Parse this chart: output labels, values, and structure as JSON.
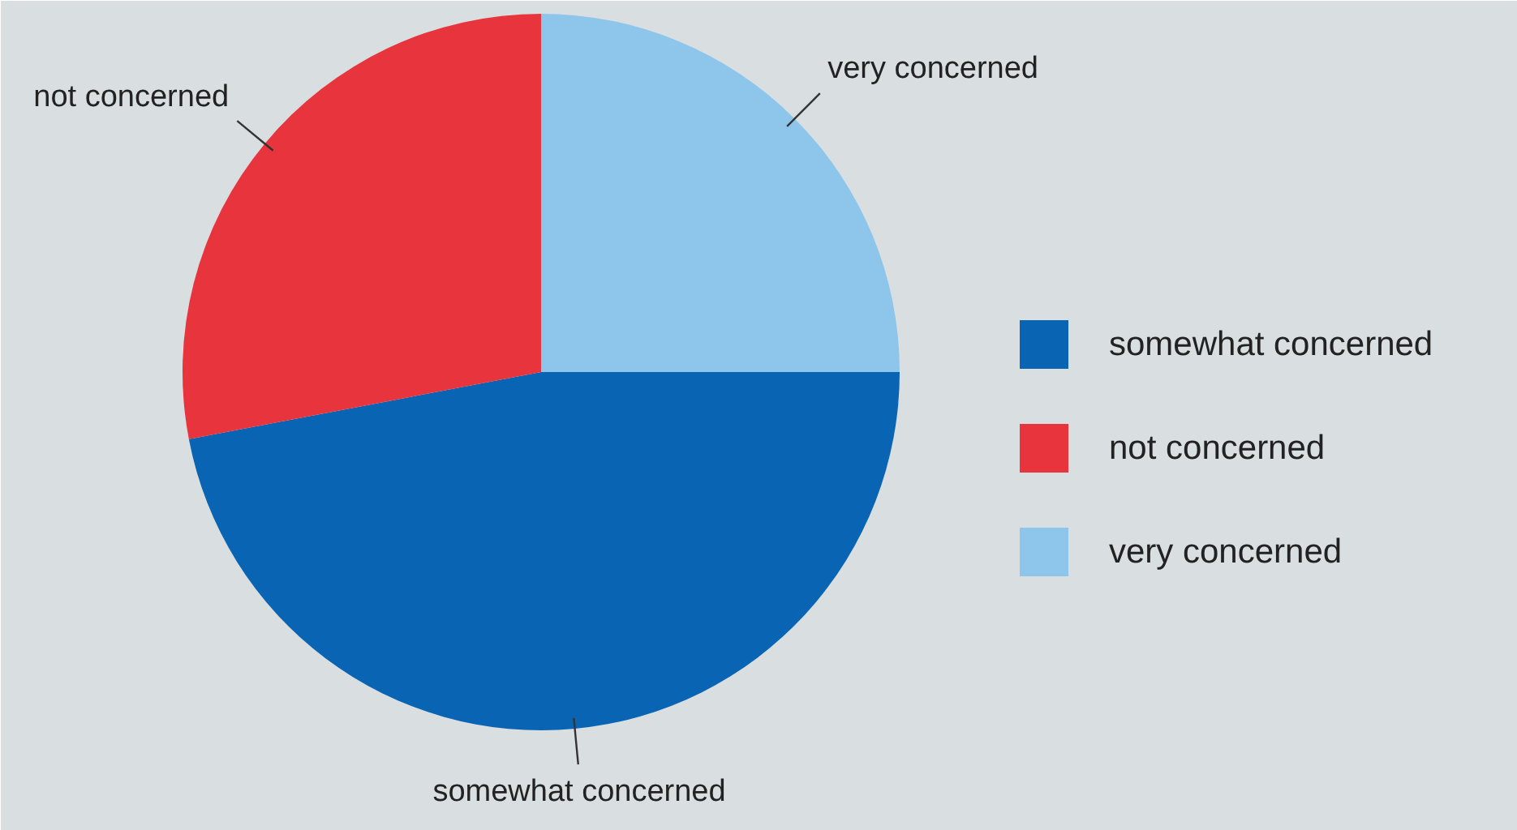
{
  "chart_data": {
    "type": "pie",
    "categories": [
      "somewhat concerned",
      "not concerned",
      "very concerned"
    ],
    "values": [
      47,
      28,
      25
    ],
    "colors": [
      "#0a64b4",
      "#e8343c",
      "#8ec5ea"
    ],
    "legend": "right"
  }
}
